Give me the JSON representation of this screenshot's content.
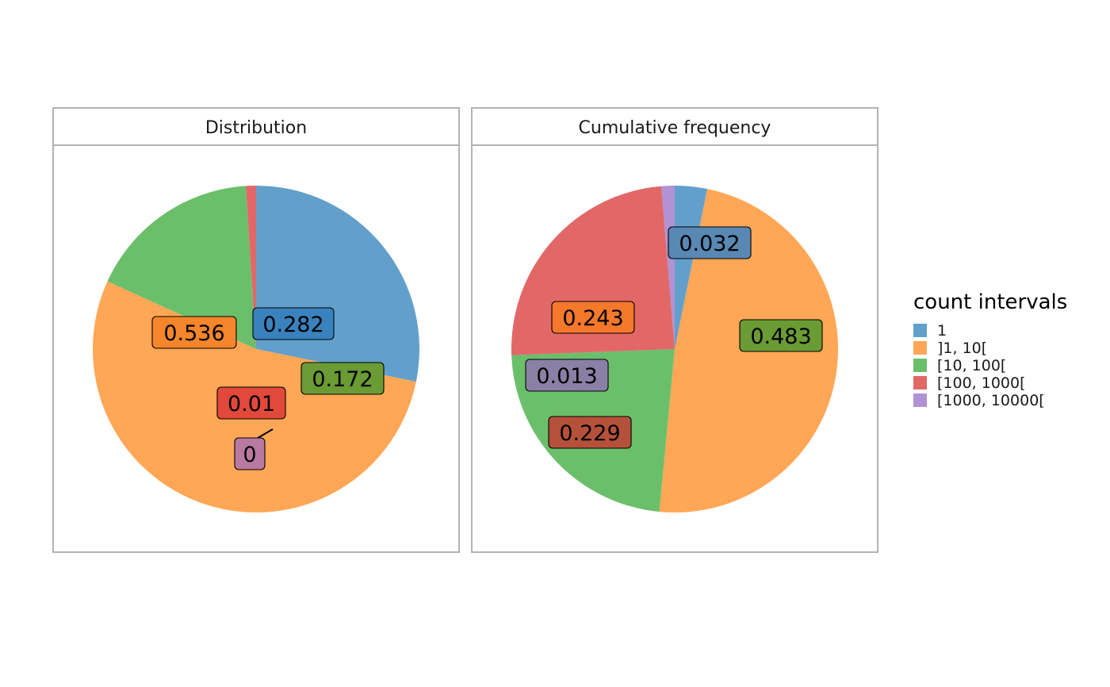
{
  "colors": {
    "1": "#62a0cb",
    "]1, 10[": "#ffa756",
    "[10, 100[": "#6bbf6b",
    "[100, 1000[": "#e26868",
    "[1000, 10000[": "#b192d4"
  },
  "chart_data": {
    "type": "pie",
    "legend": {
      "title": "count intervals",
      "placement": "right",
      "entries": [
        "1",
        "]1, 10[",
        "[10, 100[",
        "[100, 1000[",
        "[1000, 10000["
      ]
    },
    "facets": [
      {
        "title": "Distribution",
        "slices": [
          {
            "category": "1",
            "value": 0.282,
            "label": "0.282",
            "label_fill": "#3a82bd"
          },
          {
            "category": "]1, 10[",
            "value": 0.536,
            "label": "0.536",
            "label_fill": "#f5862b"
          },
          {
            "category": "[10, 100[",
            "value": 0.172,
            "label": "0.172",
            "label_fill": "#6a9b34"
          },
          {
            "category": "[100, 1000[",
            "value": 0.01,
            "label": "0.01",
            "label_fill": "#e2493a"
          },
          {
            "category": "[1000, 10000[",
            "value": 0,
            "label": "0",
            "label_fill": "#b87aa0"
          }
        ]
      },
      {
        "title": "Cumulative frequency",
        "slices": [
          {
            "category": "1",
            "value": 0.032,
            "label": "0.032",
            "label_fill": "#5888b3"
          },
          {
            "category": "]1, 10[",
            "value": 0.483,
            "label": "0.483",
            "label_fill": "#6a9b34"
          },
          {
            "category": "[10, 100[",
            "value": 0.229,
            "label": "0.229",
            "label_fill": "#b5513a"
          },
          {
            "category": "[100, 1000[",
            "value": 0.243,
            "label": "0.243",
            "label_fill": "#f5782b"
          },
          {
            "category": "[1000, 10000[",
            "value": 0.013,
            "label": "0.013",
            "label_fill": "#8a80a6"
          }
        ]
      }
    ]
  }
}
